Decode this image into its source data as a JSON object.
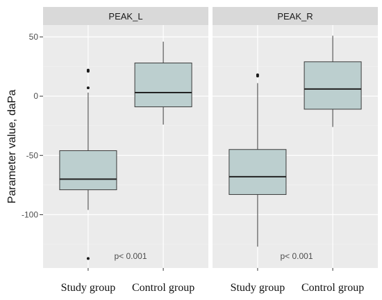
{
  "chart_data": {
    "type": "boxplot",
    "ylabel": "Parameter value, daPa",
    "ylim": [
      -145,
      60
    ],
    "yticks": [
      50,
      0,
      -50,
      -100
    ],
    "ytick_labels": [
      "50",
      "0",
      "-50",
      "-100"
    ],
    "categories": [
      "Study group",
      "Control group"
    ],
    "grid": true,
    "panels": [
      {
        "name": "PEAK_L",
        "annotation": "p< 0.001",
        "boxes": [
          {
            "group": "Study group",
            "whisker_low": -96,
            "q1": -79,
            "median": -70,
            "q3": -46,
            "whisker_high": 3,
            "outliers": [
              22,
              21,
              7,
              -137
            ]
          },
          {
            "group": "Control group",
            "whisker_low": -24,
            "q1": -9,
            "median": 3,
            "q3": 28,
            "whisker_high": 46,
            "outliers": []
          }
        ]
      },
      {
        "name": "PEAK_R",
        "annotation": "p< 0.001",
        "boxes": [
          {
            "group": "Study group",
            "whisker_low": -127,
            "q1": -83,
            "median": -68,
            "q3": -45,
            "whisker_high": 11,
            "outliers": [
              18,
              17
            ]
          },
          {
            "group": "Control group",
            "whisker_low": -26,
            "q1": -11,
            "median": 6,
            "q3": 29,
            "whisker_high": 51,
            "outliers": []
          }
        ]
      }
    ]
  },
  "colors": {
    "panel_bg": "#ebebeb",
    "strip_bg": "#d9d9d9",
    "grid_major": "#ffffff",
    "box_fill": "#bccfcf",
    "box_stroke": "#3a3a3a",
    "outlier": "#1a1a1a"
  }
}
